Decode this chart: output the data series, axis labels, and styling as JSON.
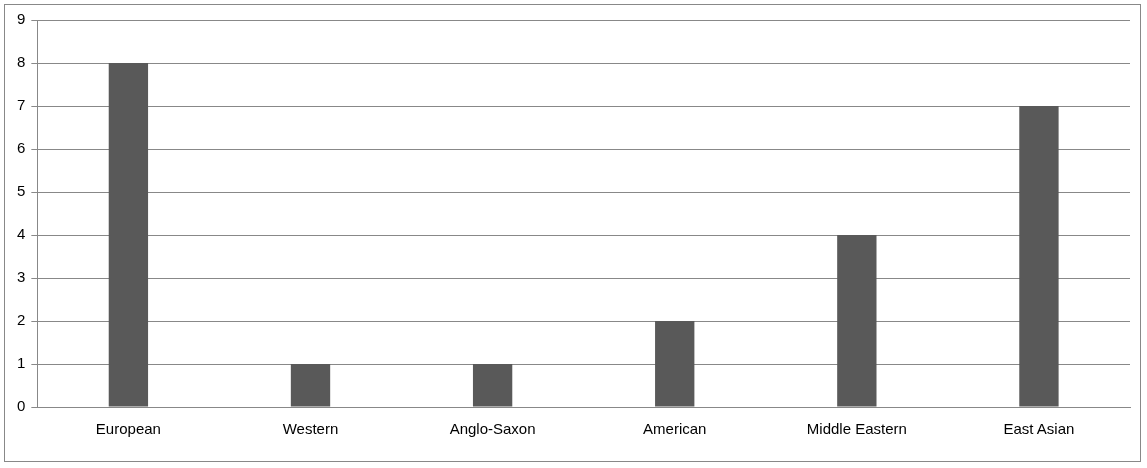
{
  "chart_data": {
    "type": "bar",
    "categories": [
      "European",
      "Western",
      "Anglo-Saxon",
      "American",
      "Middle Eastern",
      "East Asian"
    ],
    "values": [
      8,
      1,
      1,
      2,
      4,
      7
    ],
    "color": "#595959",
    "ylim": [
      0,
      9
    ],
    "yticks": [
      0,
      1,
      2,
      3,
      4,
      5,
      6,
      7,
      8,
      9
    ],
    "grid": "y",
    "legend": false
  }
}
